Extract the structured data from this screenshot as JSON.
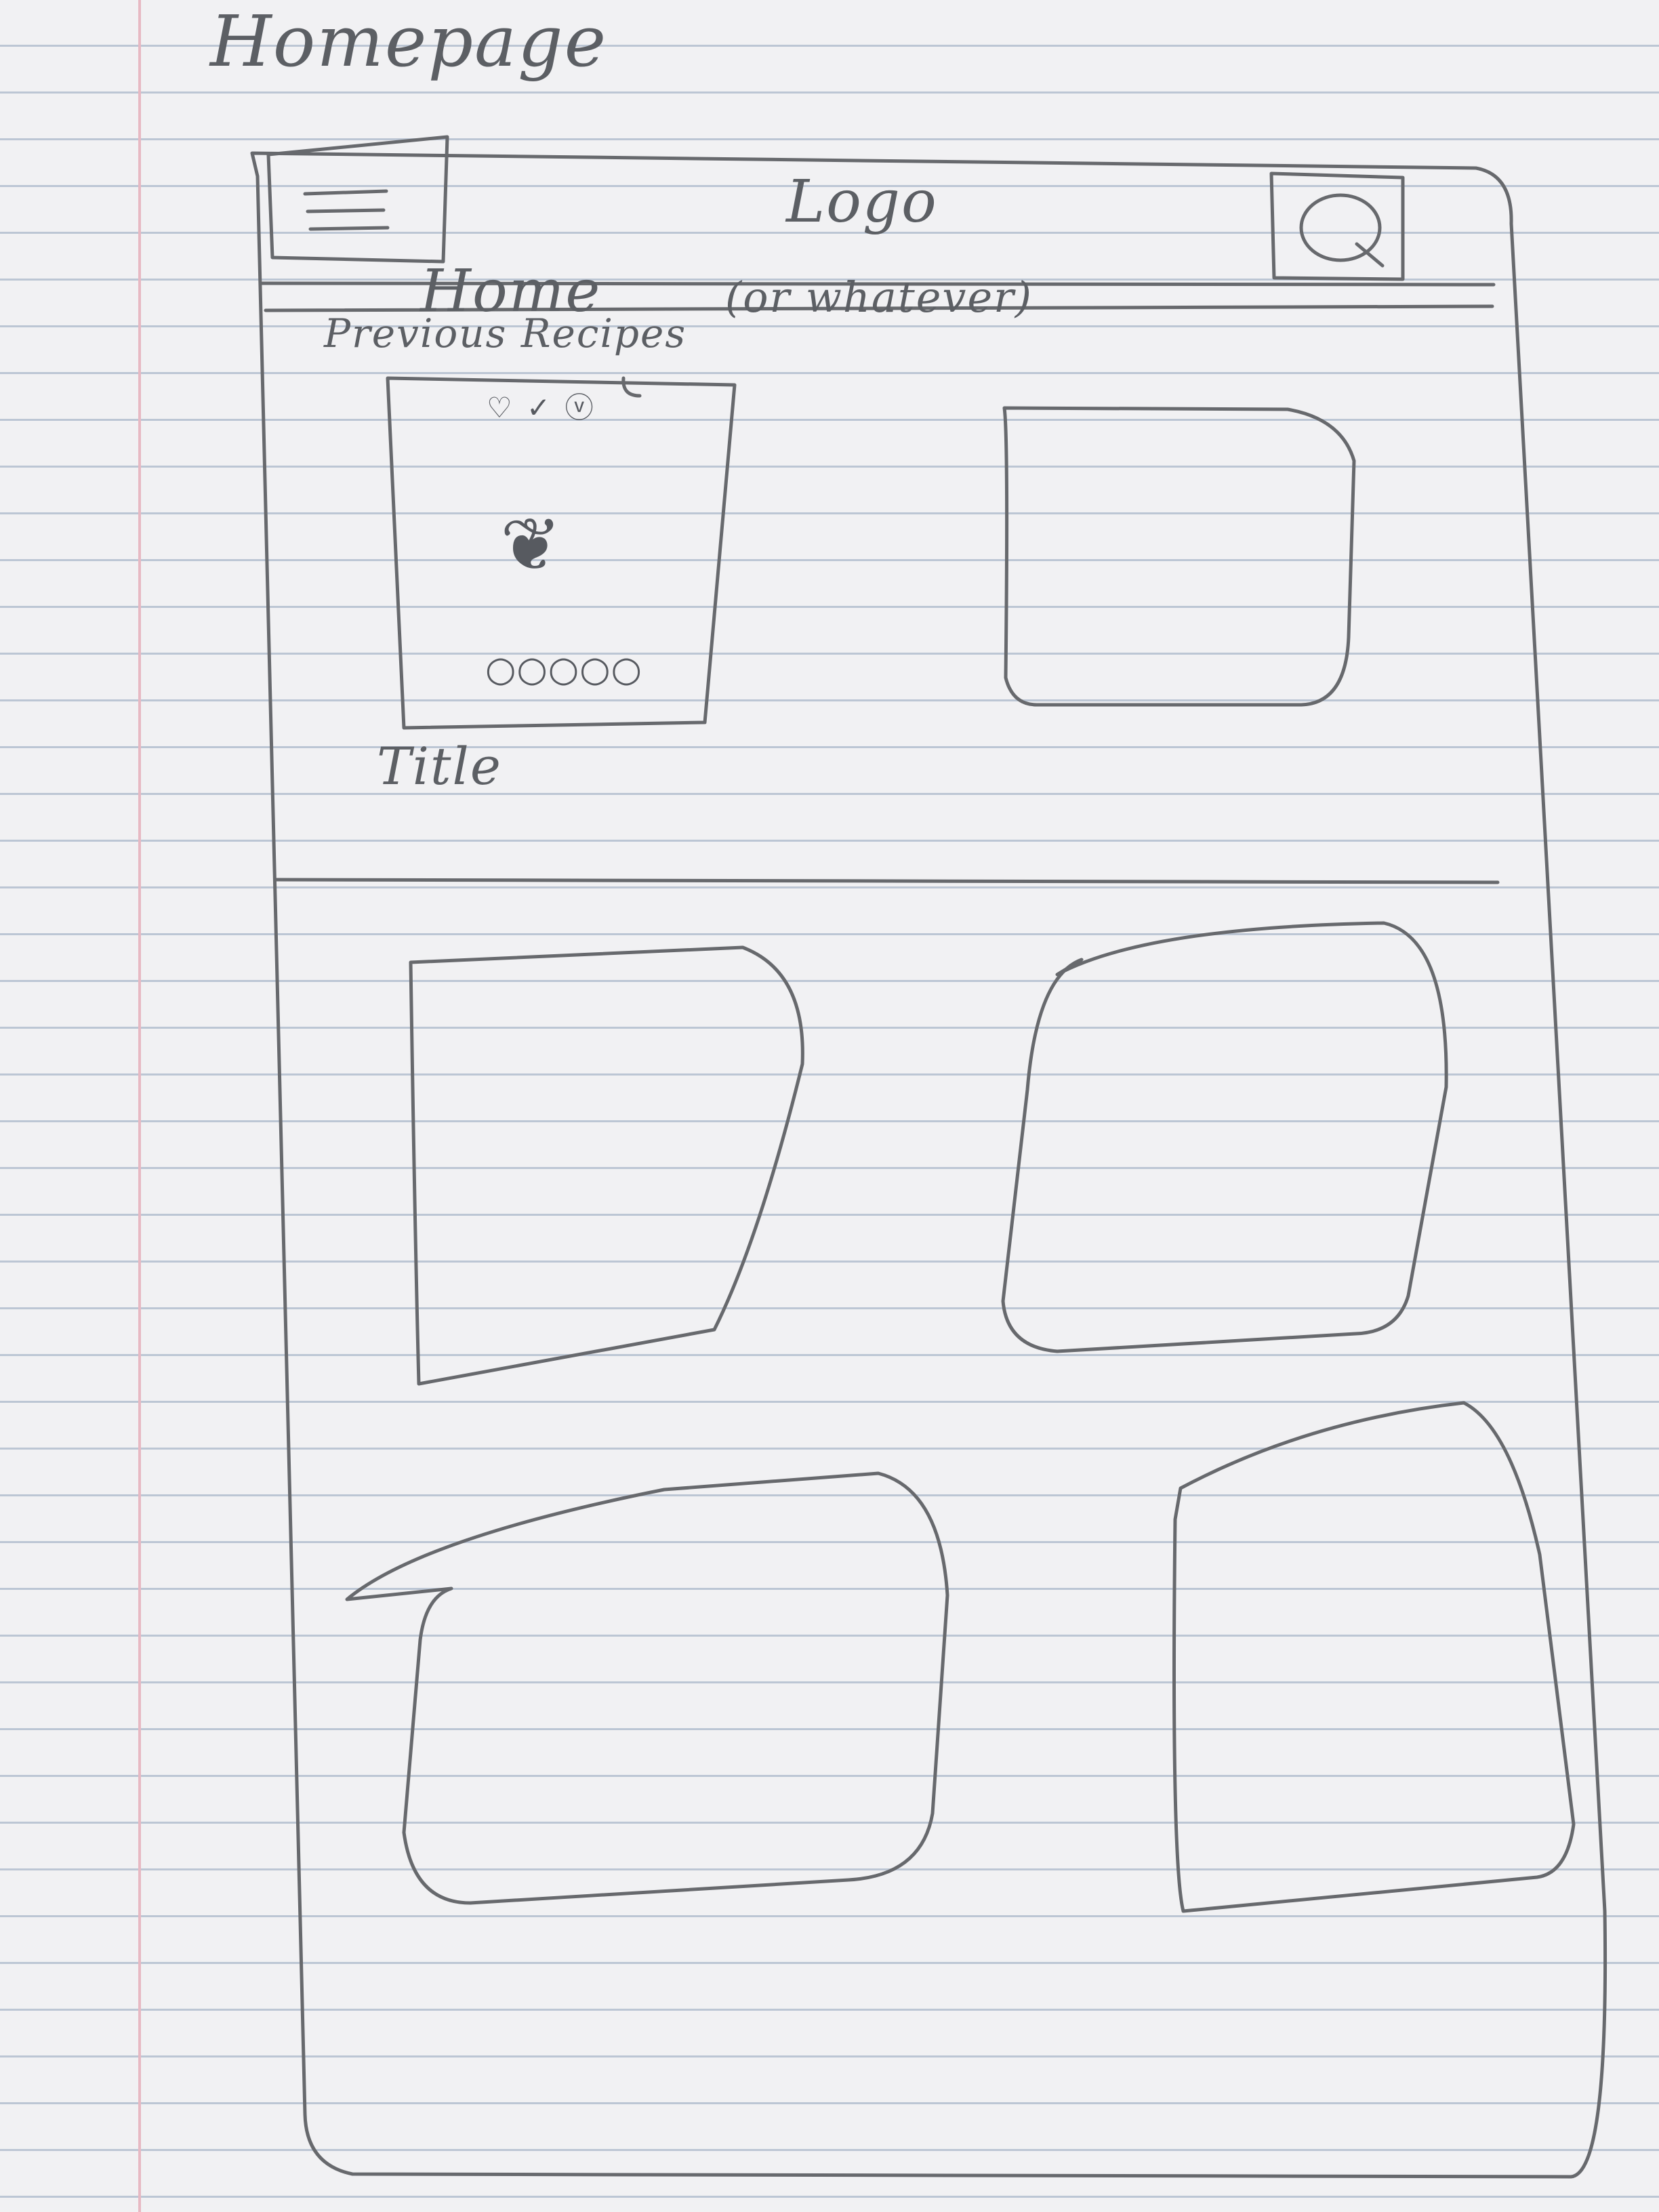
{
  "sketch": {
    "page_heading": "Homepage",
    "header": {
      "logo": "Logo",
      "menu_icon": "hamburger-menu-icon",
      "search_icon": "search-icon"
    },
    "nav": {
      "page_name": "Home",
      "page_name_note": "(or whatever)"
    },
    "section": {
      "label": "Previous Recipes"
    },
    "featured_card": {
      "title": "Title",
      "icons": [
        "heart-icon",
        "check-icon",
        "vegetarian-badge-icon",
        "image-placeholder-icon",
        "rating-circles-icon"
      ],
      "rating_circles": 5
    },
    "cards": [
      {
        "id": "featured"
      },
      {
        "id": "empty-1"
      },
      {
        "id": "empty-2"
      },
      {
        "id": "empty-3"
      },
      {
        "id": "empty-4"
      },
      {
        "id": "empty-5"
      }
    ],
    "colors": {
      "paper": "#f1f1f3",
      "ruled_lines": "#bcc6d4",
      "margin_line": "#e7b9c3",
      "pencil": "#5c5f64"
    }
  }
}
